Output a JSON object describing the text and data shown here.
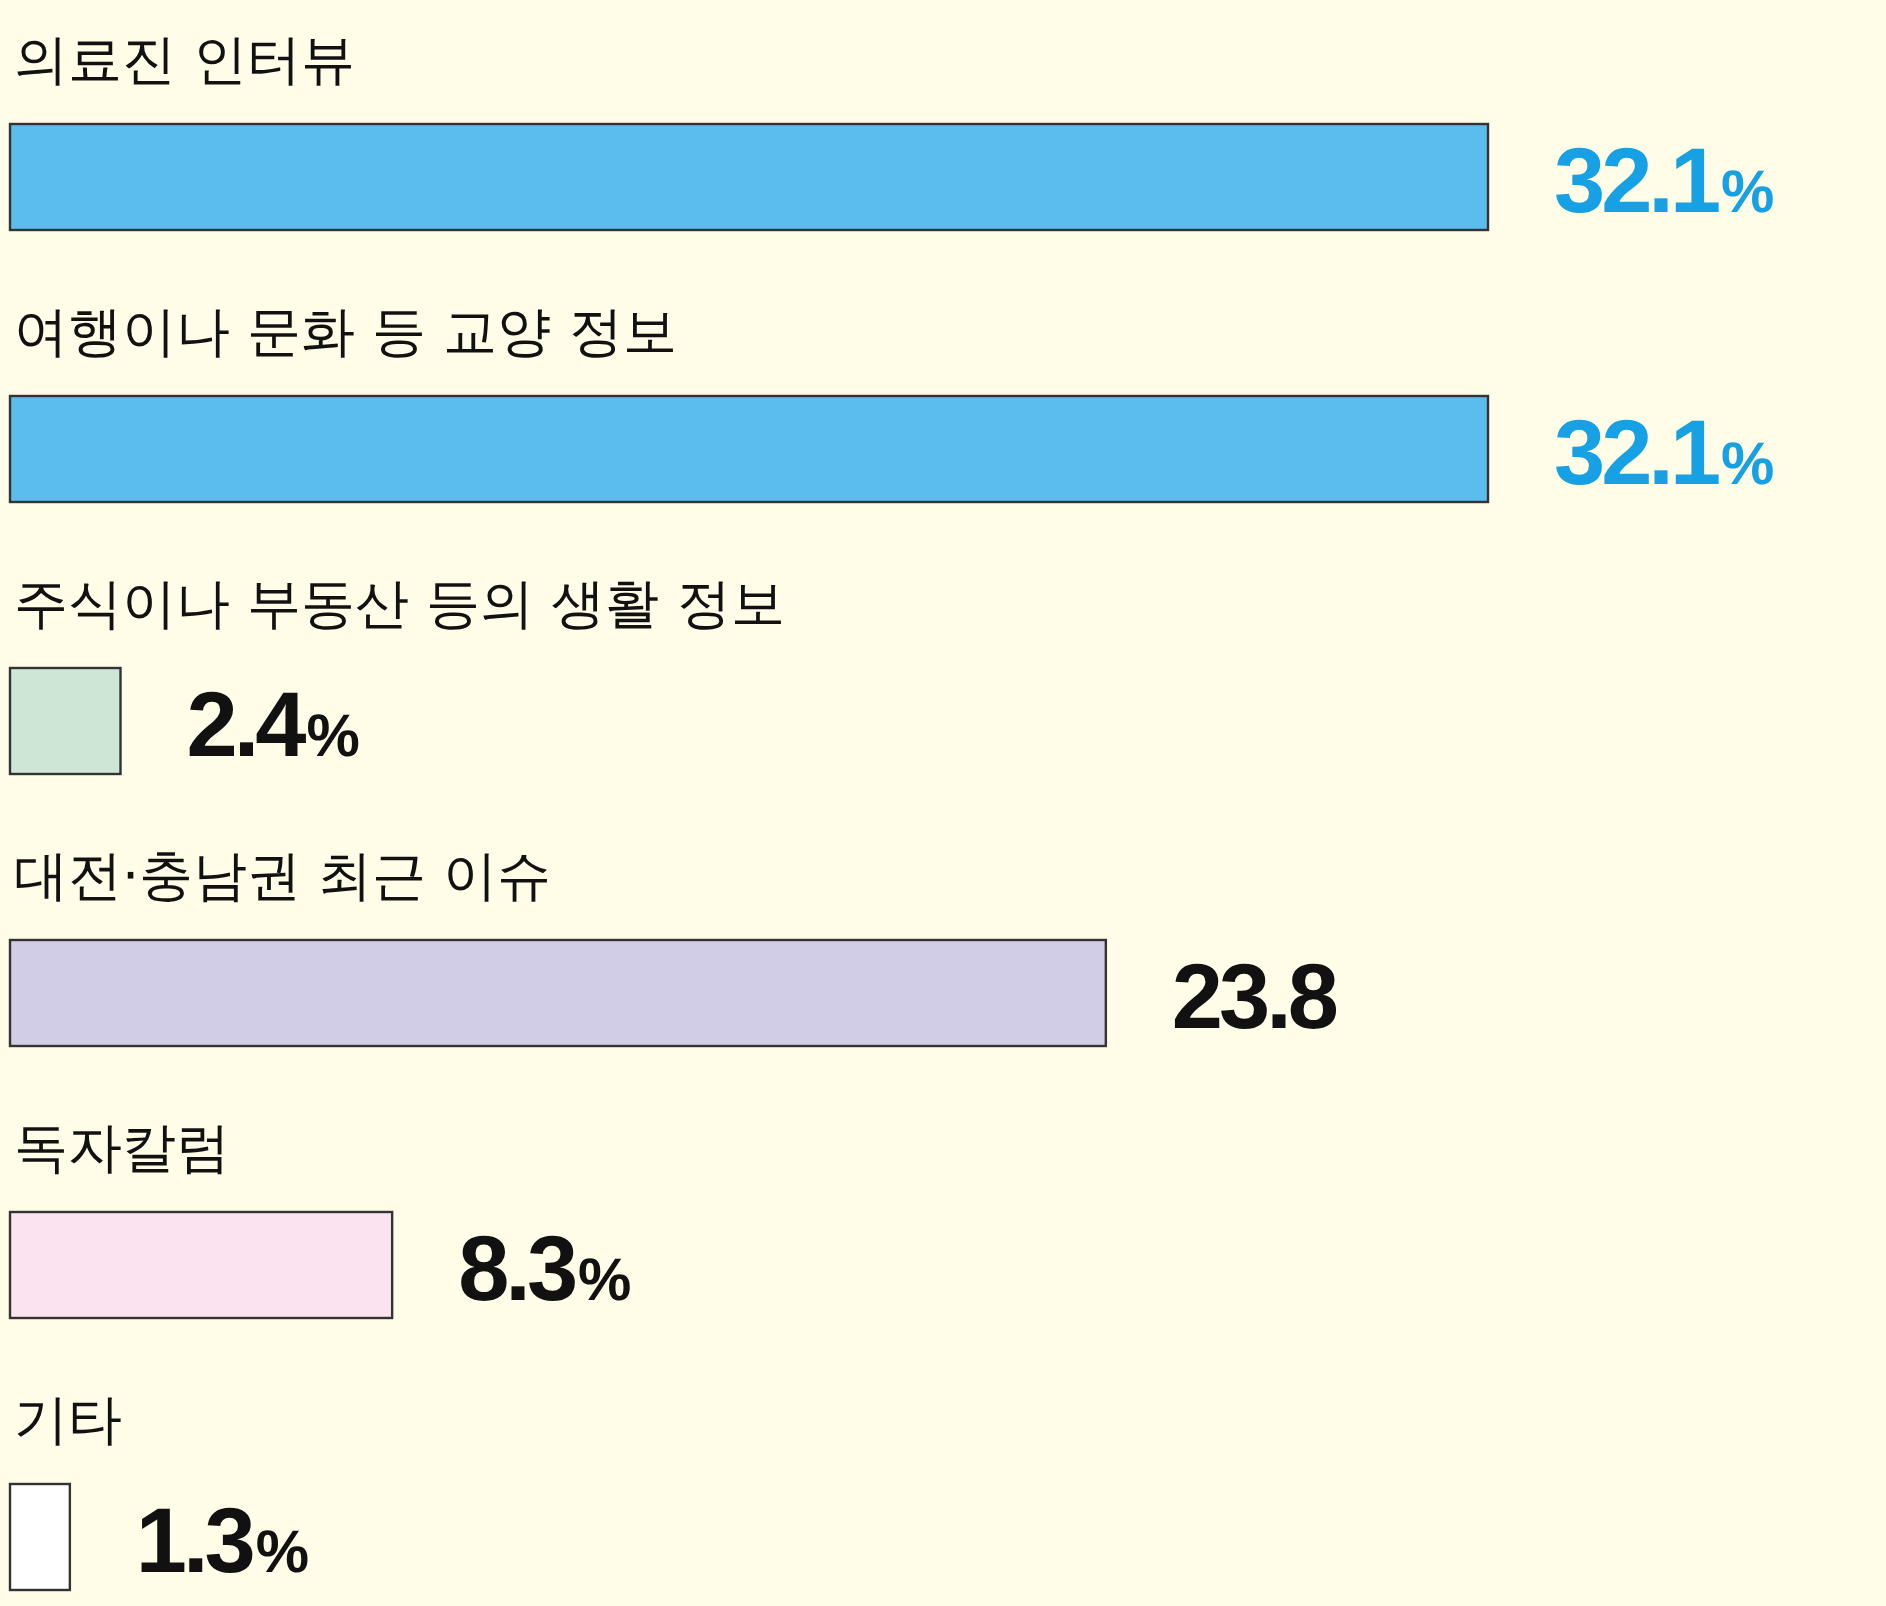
{
  "chart_data": {
    "type": "bar",
    "orientation": "horizontal",
    "categories": [
      "의료진 인터뷰",
      "여행이나 문화 등 교양 정보",
      "주식이나 부동산 등의 생활 정보",
      "대전·충남권 최근 이슈",
      "독자칼럼",
      "기타"
    ],
    "values": [
      32.1,
      32.1,
      2.4,
      23.8,
      8.3,
      1.3
    ],
    "colors": [
      "#5bbdee",
      "#5bbdee",
      "#cde6d6",
      "#d1cde6",
      "#fbe3ef",
      "#ffffff"
    ],
    "value_labels": [
      "32.1%",
      "32.1%",
      "2.4%",
      "23.8",
      "8.3%",
      "1.3%"
    ]
  }
}
